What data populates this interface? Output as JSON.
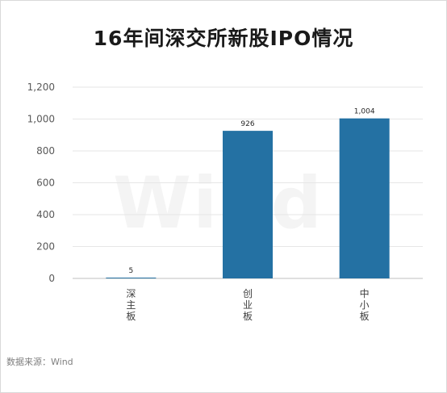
{
  "chart_data": {
    "type": "bar",
    "title": "16年间深交所新股IPO情况",
    "categories": [
      "深主板",
      "创业板",
      "中小板"
    ],
    "values": [
      5,
      926,
      1004
    ],
    "value_labels": [
      "5",
      "926",
      "1,004"
    ],
    "ylim": [
      0,
      1200
    ],
    "yticks": [
      0,
      200,
      400,
      600,
      800,
      1000,
      1200
    ],
    "ytick_labels": [
      "0",
      "200",
      "400",
      "600",
      "800",
      "1,000",
      "1,200"
    ],
    "xlabel": "",
    "ylabel": "",
    "grid": true,
    "bar_color": "#2471a3",
    "grid_color": "#e6e6e6"
  },
  "watermark": "Wind",
  "source": "数据来源：Wind"
}
